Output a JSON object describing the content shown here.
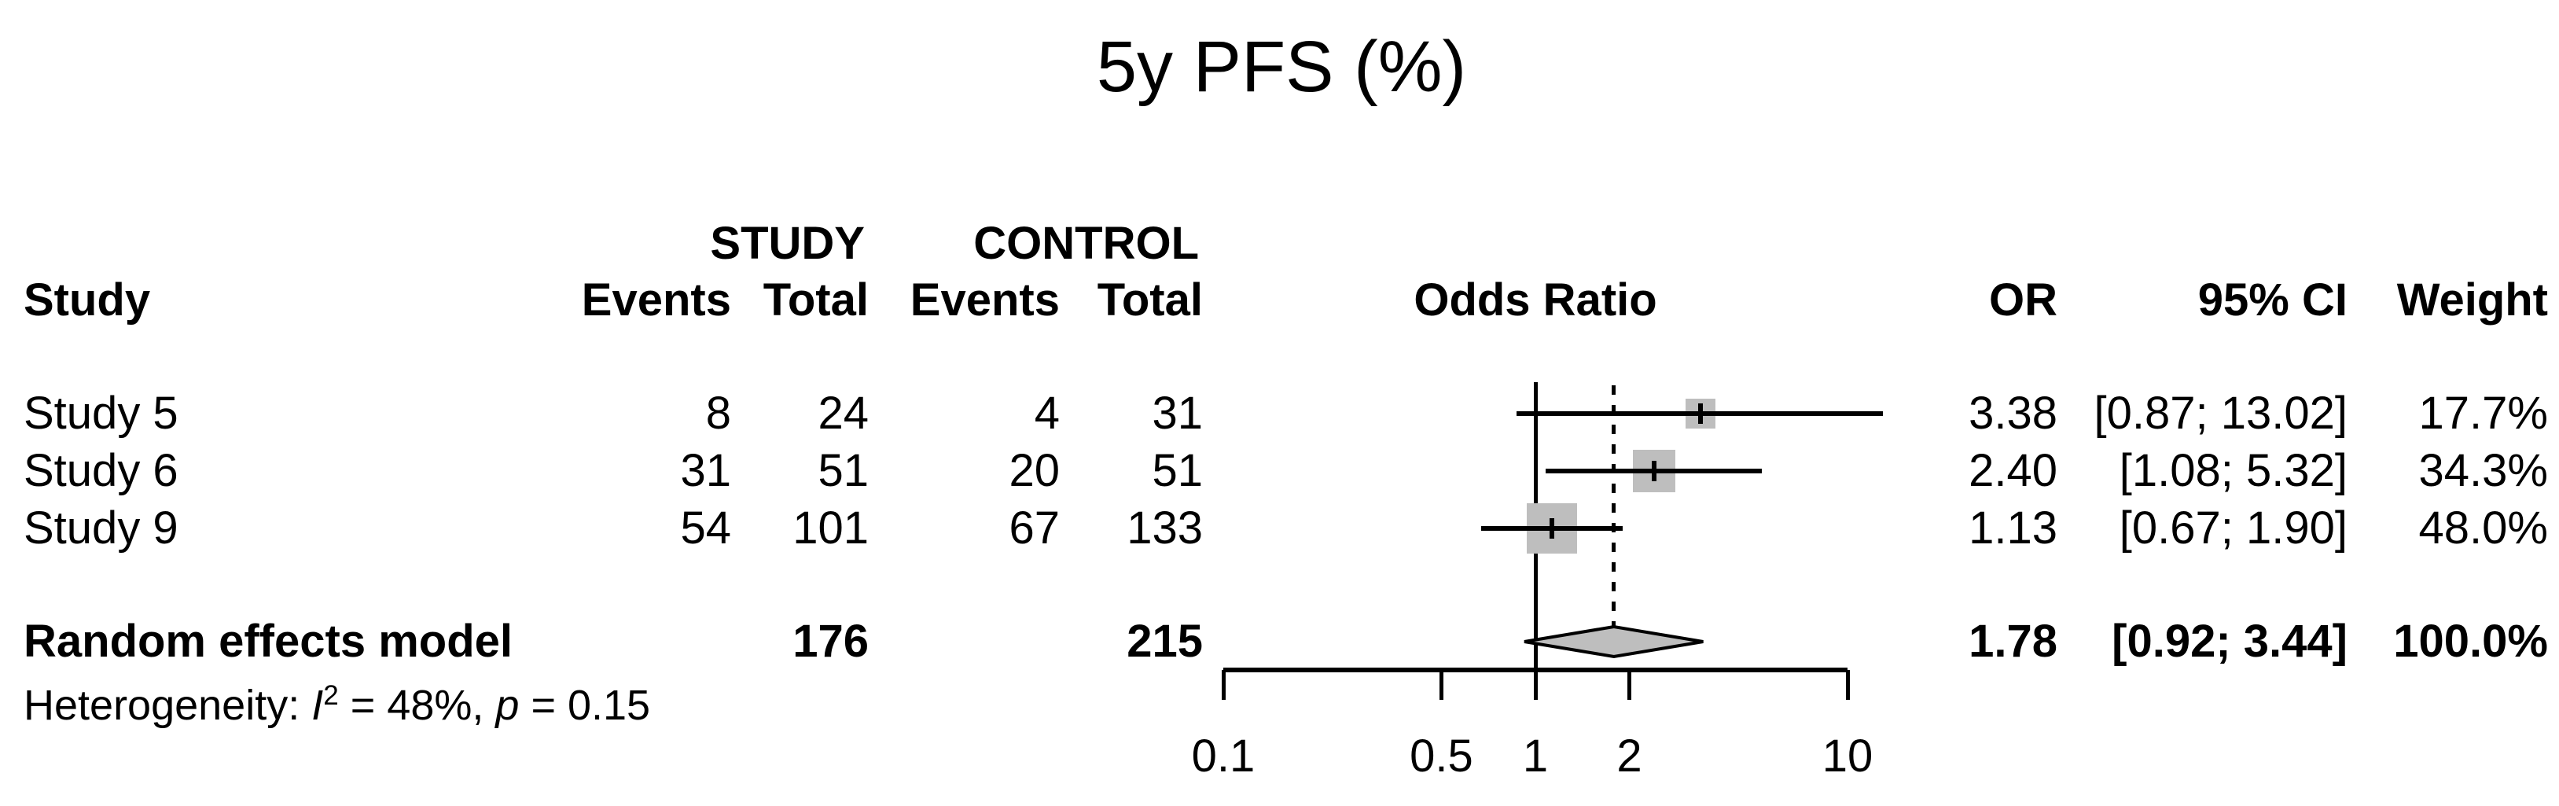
{
  "title": "5y PFS (%)",
  "header": {
    "group_study": "STUDY",
    "group_control": "CONTROL",
    "col_study": "Study",
    "col_events_study": "Events",
    "col_total_study": "Total",
    "col_events_control": "Events",
    "col_total_control": "Total",
    "col_odds_ratio": "Odds Ratio",
    "col_or": "OR",
    "col_ci": "95% CI",
    "col_weight": "Weight"
  },
  "chart_data": {
    "type": "forest",
    "title": "5y PFS (%)",
    "x_scale": "log10",
    "axis_range": [
      0.1,
      10
    ],
    "axis_ticks": [
      0.1,
      0.5,
      1,
      2,
      10
    ],
    "axis_tick_labels": [
      "0.1",
      "0.5",
      "1",
      "2",
      "10"
    ],
    "reference_line": 1,
    "pooled_effect_line": 1.78,
    "studies": [
      {
        "name": "Study 5",
        "study_events": "8",
        "study_total": "24",
        "control_events": "4",
        "control_total": "31",
        "or": 3.38,
        "ci_low": 0.87,
        "ci_high": 13.02,
        "or_label": "3.38",
        "ci_label": "[0.87; 13.02]",
        "weight": 17.7,
        "weight_label": "17.7%"
      },
      {
        "name": "Study 6",
        "study_events": "31",
        "study_total": "51",
        "control_events": "20",
        "control_total": "51",
        "or": 2.4,
        "ci_low": 1.08,
        "ci_high": 5.32,
        "or_label": "2.40",
        "ci_label": "[1.08; 5.32]",
        "weight": 34.3,
        "weight_label": "34.3%"
      },
      {
        "name": "Study 9",
        "study_events": "54",
        "study_total": "101",
        "control_events": "67",
        "control_total": "133",
        "or": 1.13,
        "ci_low": 0.67,
        "ci_high": 1.9,
        "or_label": "1.13",
        "ci_label": "[0.67; 1.90]",
        "weight": 48.0,
        "weight_label": "48.0%"
      }
    ],
    "pooled": {
      "name": "Random effects model",
      "study_total": "176",
      "control_total": "215",
      "or": 1.78,
      "ci_low": 0.92,
      "ci_high": 3.44,
      "or_label": "1.78",
      "ci_label": "[0.92; 3.44]",
      "weight_label": "100.0%"
    },
    "heterogeneity": {
      "prefix": "Heterogeneity: ",
      "i_label": "I",
      "i_sup": "2",
      "mid": " = 48%, ",
      "p_label": "p",
      "suffix": " = 0.15"
    },
    "colors": {
      "marker_fill": "#bebebe",
      "line": "#000000",
      "text": "#000000",
      "background": "#ffffff"
    }
  }
}
